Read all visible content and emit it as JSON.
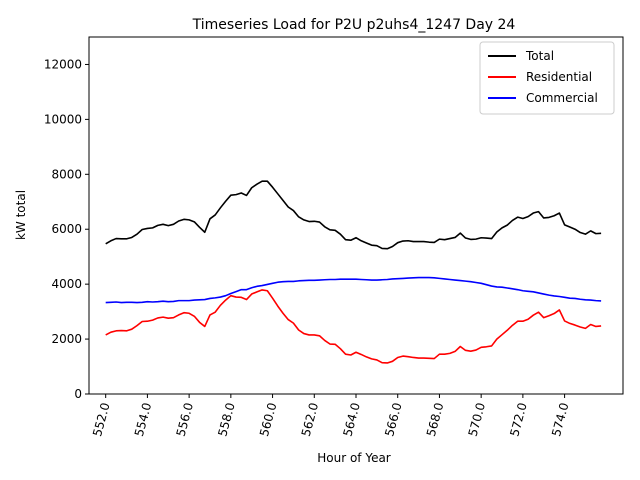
{
  "chart_data": {
    "type": "line",
    "title": "Timeseries Load for P2U p2uhs4_1247  Day 24",
    "xlabel": "Hour of Year",
    "ylabel": "kW total",
    "xlim": [
      551.2,
      576.8
    ],
    "ylim": [
      0,
      13000
    ],
    "xticks": [
      552.0,
      554.0,
      556.0,
      558.0,
      560.0,
      562.0,
      564.0,
      566.0,
      568.0,
      570.0,
      572.0,
      574.0
    ],
    "xtick_labels": [
      "552.0",
      "554.0",
      "556.0",
      "558.0",
      "560.0",
      "562.0",
      "564.0",
      "566.0",
      "568.0",
      "570.0",
      "572.0",
      "574.0"
    ],
    "yticks": [
      0,
      2000,
      4000,
      6000,
      8000,
      10000,
      12000
    ],
    "ytick_labels": [
      "0",
      "2000",
      "4000",
      "6000",
      "8000",
      "10000",
      "12000"
    ],
    "grid": false,
    "legend_position": "upper right",
    "x": [
      552.0,
      552.25,
      552.5,
      552.75,
      553.0,
      553.25,
      553.5,
      553.75,
      554.0,
      554.25,
      554.5,
      554.75,
      555.0,
      555.25,
      555.5,
      555.75,
      556.0,
      556.25,
      556.5,
      556.75,
      557.0,
      557.25,
      557.5,
      557.75,
      558.0,
      558.25,
      558.5,
      558.75,
      559.0,
      559.25,
      559.5,
      559.75,
      560.0,
      560.25,
      560.5,
      560.75,
      561.0,
      561.25,
      561.5,
      561.75,
      562.0,
      562.25,
      562.5,
      562.75,
      563.0,
      563.25,
      563.5,
      563.75,
      564.0,
      564.25,
      564.5,
      564.75,
      565.0,
      565.25,
      565.5,
      565.75,
      566.0,
      566.25,
      566.5,
      566.75,
      567.0,
      567.25,
      567.5,
      567.75,
      568.0,
      568.25,
      568.5,
      568.75,
      569.0,
      569.25,
      569.5,
      569.75,
      570.0,
      570.25,
      570.5,
      570.75,
      571.0,
      571.25,
      571.5,
      571.75,
      572.0,
      572.25,
      572.5,
      572.75,
      573.0,
      573.25,
      573.5,
      573.75,
      574.0,
      574.25,
      574.5,
      574.75,
      575.0,
      575.25,
      575.5,
      575.75
    ],
    "series": [
      {
        "name": "Total",
        "color": "#000000",
        "values": [
          5470,
          5580,
          5660,
          5650,
          5650,
          5700,
          5820,
          5990,
          6030,
          6050,
          6140,
          6180,
          6130,
          6180,
          6300,
          6360,
          6340,
          6270,
          6070,
          5890,
          6380,
          6520,
          6780,
          7020,
          7240,
          7260,
          7320,
          7230,
          7510,
          7640,
          7750,
          7750,
          7530,
          7290,
          7050,
          6810,
          6680,
          6450,
          6340,
          6280,
          6290,
          6260,
          6090,
          5980,
          5960,
          5820,
          5620,
          5600,
          5690,
          5580,
          5500,
          5420,
          5400,
          5300,
          5290,
          5370,
          5510,
          5570,
          5580,
          5550,
          5550,
          5550,
          5530,
          5520,
          5640,
          5620,
          5660,
          5700,
          5860,
          5680,
          5630,
          5640,
          5690,
          5680,
          5660,
          5900,
          6050,
          6150,
          6320,
          6440,
          6390,
          6460,
          6590,
          6640,
          6410,
          6430,
          6490,
          6590,
          6160,
          6080,
          6000,
          5880,
          5820,
          5940,
          5840,
          5850
        ]
      },
      {
        "name": "Residential",
        "color": "#ff0000",
        "values": [
          2150,
          2250,
          2300,
          2310,
          2300,
          2360,
          2490,
          2640,
          2650,
          2690,
          2770,
          2800,
          2760,
          2780,
          2880,
          2960,
          2940,
          2830,
          2610,
          2460,
          2880,
          2980,
          3230,
          3420,
          3580,
          3530,
          3520,
          3440,
          3640,
          3720,
          3790,
          3760,
          3490,
          3200,
          2940,
          2710,
          2580,
          2330,
          2200,
          2150,
          2150,
          2120,
          1950,
          1820,
          1810,
          1650,
          1450,
          1420,
          1520,
          1440,
          1350,
          1280,
          1240,
          1140,
          1130,
          1190,
          1330,
          1380,
          1360,
          1330,
          1310,
          1310,
          1300,
          1290,
          1450,
          1450,
          1480,
          1550,
          1730,
          1590,
          1560,
          1600,
          1700,
          1720,
          1750,
          2000,
          2160,
          2320,
          2500,
          2650,
          2650,
          2720,
          2870,
          2980,
          2780,
          2850,
          2930,
          3060,
          2660,
          2570,
          2510,
          2440,
          2390,
          2530,
          2460,
          2480
        ]
      },
      {
        "name": "Commercial",
        "color": "#0000ff",
        "values": [
          3330,
          3340,
          3350,
          3330,
          3340,
          3340,
          3330,
          3340,
          3360,
          3350,
          3360,
          3380,
          3360,
          3370,
          3400,
          3400,
          3400,
          3420,
          3430,
          3440,
          3480,
          3500,
          3530,
          3580,
          3660,
          3730,
          3800,
          3800,
          3870,
          3920,
          3950,
          3990,
          4030,
          4070,
          4090,
          4100,
          4100,
          4120,
          4130,
          4140,
          4140,
          4150,
          4160,
          4170,
          4170,
          4180,
          4180,
          4180,
          4180,
          4170,
          4160,
          4150,
          4150,
          4160,
          4170,
          4190,
          4200,
          4210,
          4220,
          4230,
          4240,
          4240,
          4240,
          4230,
          4210,
          4190,
          4170,
          4150,
          4130,
          4110,
          4090,
          4060,
          4030,
          3980,
          3930,
          3900,
          3890,
          3860,
          3830,
          3800,
          3760,
          3740,
          3720,
          3680,
          3640,
          3600,
          3570,
          3550,
          3520,
          3490,
          3480,
          3450,
          3430,
          3420,
          3400,
          3390
        ]
      }
    ]
  }
}
